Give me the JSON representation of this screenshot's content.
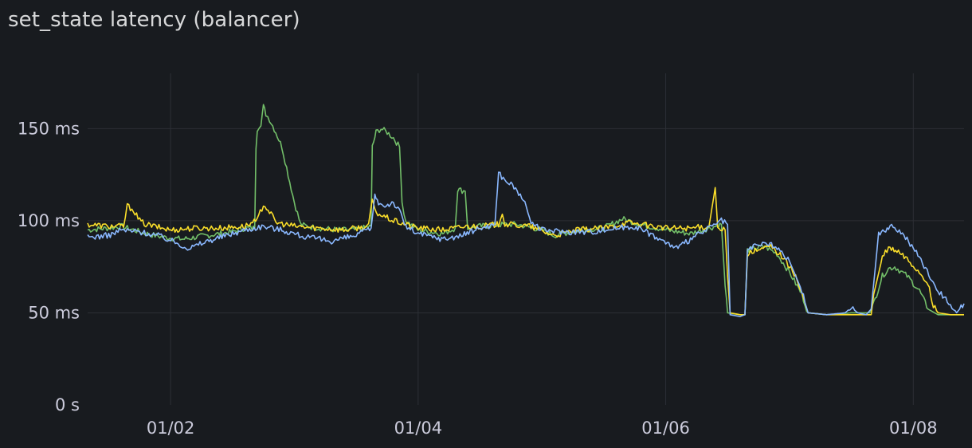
{
  "panel": {
    "title": "set_state latency (balancer)"
  },
  "chart_data": {
    "type": "line",
    "title": "set_state latency (balancer)",
    "xlabel": "",
    "ylabel": "",
    "x_unit": "day",
    "x_range": [
      1.33,
      8.41
    ],
    "x_ticks": [
      {
        "value": 2,
        "label": "01/02"
      },
      {
        "value": 4,
        "label": "01/04"
      },
      {
        "value": 6,
        "label": "01/06"
      },
      {
        "value": 8,
        "label": "01/08"
      }
    ],
    "ylim": [
      0,
      180
    ],
    "y_ticks": [
      {
        "value": 0,
        "label": "0 s"
      },
      {
        "value": 50,
        "label": "50 ms"
      },
      {
        "value": 100,
        "label": "100 ms"
      },
      {
        "value": 150,
        "label": "150 ms"
      }
    ],
    "grid": true,
    "legend": "none",
    "series": [
      {
        "color": "#73bf69",
        "points": [
          [
            1.33,
            95
          ],
          [
            1.5,
            96
          ],
          [
            1.6,
            97
          ],
          [
            1.7,
            95
          ],
          [
            1.8,
            93
          ],
          [
            1.95,
            91
          ],
          [
            2.1,
            90
          ],
          [
            2.3,
            92
          ],
          [
            2.5,
            94
          ],
          [
            2.6,
            96
          ],
          [
            2.68,
            96
          ],
          [
            2.69,
            140
          ],
          [
            2.7,
            150
          ],
          [
            2.73,
            153
          ],
          [
            2.75,
            162
          ],
          [
            2.77,
            158
          ],
          [
            2.8,
            155
          ],
          [
            2.85,
            148
          ],
          [
            2.9,
            140
          ],
          [
            2.95,
            125
          ],
          [
            3.0,
            110
          ],
          [
            3.05,
            98
          ],
          [
            3.1,
            97
          ],
          [
            3.2,
            96
          ],
          [
            3.35,
            95
          ],
          [
            3.5,
            95
          ],
          [
            3.62,
            97
          ],
          [
            3.63,
            140
          ],
          [
            3.66,
            148
          ],
          [
            3.7,
            150
          ],
          [
            3.75,
            148
          ],
          [
            3.8,
            145
          ],
          [
            3.85,
            140
          ],
          [
            3.87,
            110
          ],
          [
            3.9,
            100
          ],
          [
            4.0,
            95
          ],
          [
            4.2,
            93
          ],
          [
            4.3,
            96
          ],
          [
            4.32,
            117
          ],
          [
            4.38,
            116
          ],
          [
            4.4,
            96
          ],
          [
            4.5,
            97
          ],
          [
            4.7,
            98
          ],
          [
            4.8,
            98
          ],
          [
            5.0,
            95
          ],
          [
            5.1,
            92
          ],
          [
            5.3,
            95
          ],
          [
            5.5,
            96
          ],
          [
            5.65,
            101
          ],
          [
            5.8,
            98
          ],
          [
            6.0,
            95
          ],
          [
            6.2,
            93
          ],
          [
            6.35,
            96
          ],
          [
            6.45,
            98
          ],
          [
            6.48,
            65
          ],
          [
            6.5,
            50
          ],
          [
            6.6,
            49
          ],
          [
            6.64,
            49
          ],
          [
            6.66,
            84
          ],
          [
            6.72,
            85
          ],
          [
            6.8,
            86
          ],
          [
            6.9,
            82
          ],
          [
            7.0,
            72
          ],
          [
            7.1,
            60
          ],
          [
            7.15,
            50
          ],
          [
            7.3,
            49
          ],
          [
            7.5,
            50
          ],
          [
            7.65,
            50
          ],
          [
            7.68,
            55
          ],
          [
            7.75,
            70
          ],
          [
            7.8,
            74
          ],
          [
            7.85,
            75
          ],
          [
            7.95,
            70
          ],
          [
            8.05,
            62
          ],
          [
            8.12,
            52
          ],
          [
            8.2,
            49
          ],
          [
            8.3,
            49
          ],
          [
            8.41,
            49
          ]
        ]
      },
      {
        "color": "#fade2a",
        "points": [
          [
            1.33,
            98
          ],
          [
            1.5,
            97
          ],
          [
            1.62,
            97
          ],
          [
            1.65,
            108
          ],
          [
            1.7,
            106
          ],
          [
            1.75,
            100
          ],
          [
            1.8,
            98
          ],
          [
            2.0,
            95
          ],
          [
            2.2,
            96
          ],
          [
            2.4,
            96
          ],
          [
            2.6,
            97
          ],
          [
            2.7,
            100
          ],
          [
            2.75,
            109
          ],
          [
            2.8,
            105
          ],
          [
            2.85,
            99
          ],
          [
            3.0,
            97
          ],
          [
            3.2,
            96
          ],
          [
            3.4,
            95
          ],
          [
            3.6,
            97
          ],
          [
            3.63,
            112
          ],
          [
            3.65,
            105
          ],
          [
            3.7,
            103
          ],
          [
            3.8,
            100
          ],
          [
            3.9,
            98
          ],
          [
            4.0,
            96
          ],
          [
            4.2,
            95
          ],
          [
            4.4,
            97
          ],
          [
            4.5,
            97
          ],
          [
            4.65,
            98
          ],
          [
            4.68,
            105
          ],
          [
            4.7,
            98
          ],
          [
            4.9,
            97
          ],
          [
            5.1,
            92
          ],
          [
            5.3,
            95
          ],
          [
            5.5,
            96
          ],
          [
            5.7,
            99
          ],
          [
            5.9,
            97
          ],
          [
            6.0,
            96
          ],
          [
            6.2,
            96
          ],
          [
            6.35,
            97
          ],
          [
            6.4,
            118
          ],
          [
            6.42,
            96
          ],
          [
            6.48,
            95
          ],
          [
            6.5,
            70
          ],
          [
            6.52,
            50
          ],
          [
            6.6,
            49
          ],
          [
            6.64,
            49
          ],
          [
            6.66,
            82
          ],
          [
            6.75,
            84
          ],
          [
            6.85,
            86
          ],
          [
            6.95,
            80
          ],
          [
            7.05,
            70
          ],
          [
            7.12,
            56
          ],
          [
            7.15,
            50
          ],
          [
            7.3,
            49
          ],
          [
            7.5,
            49
          ],
          [
            7.66,
            49
          ],
          [
            7.68,
            60
          ],
          [
            7.75,
            80
          ],
          [
            7.8,
            85
          ],
          [
            7.88,
            83
          ],
          [
            7.95,
            79
          ],
          [
            8.05,
            72
          ],
          [
            8.12,
            66
          ],
          [
            8.15,
            55
          ],
          [
            8.2,
            50
          ],
          [
            8.3,
            49
          ],
          [
            8.41,
            49
          ]
        ]
      },
      {
        "color": "#8ab8ff",
        "points": [
          [
            1.33,
            91
          ],
          [
            1.5,
            92
          ],
          [
            1.6,
            95
          ],
          [
            1.75,
            94
          ],
          [
            1.9,
            92
          ],
          [
            2.05,
            88
          ],
          [
            2.15,
            85
          ],
          [
            2.3,
            89
          ],
          [
            2.45,
            92
          ],
          [
            2.6,
            95
          ],
          [
            2.75,
            97
          ],
          [
            2.9,
            95
          ],
          [
            3.1,
            91
          ],
          [
            3.3,
            89
          ],
          [
            3.5,
            92
          ],
          [
            3.62,
            96
          ],
          [
            3.65,
            113
          ],
          [
            3.68,
            110
          ],
          [
            3.72,
            108
          ],
          [
            3.8,
            110
          ],
          [
            3.85,
            105
          ],
          [
            3.9,
            97
          ],
          [
            4.0,
            93
          ],
          [
            4.2,
            90
          ],
          [
            4.35,
            92
          ],
          [
            4.5,
            96
          ],
          [
            4.62,
            98
          ],
          [
            4.65,
            126
          ],
          [
            4.7,
            122
          ],
          [
            4.75,
            120
          ],
          [
            4.85,
            112
          ],
          [
            4.9,
            100
          ],
          [
            5.0,
            95
          ],
          [
            5.2,
            94
          ],
          [
            5.4,
            94
          ],
          [
            5.6,
            96
          ],
          [
            5.75,
            97
          ],
          [
            5.9,
            92
          ],
          [
            6.0,
            88
          ],
          [
            6.1,
            85
          ],
          [
            6.2,
            90
          ],
          [
            6.35,
            96
          ],
          [
            6.45,
            100
          ],
          [
            6.5,
            98
          ],
          [
            6.52,
            49
          ],
          [
            6.6,
            48
          ],
          [
            6.64,
            49
          ],
          [
            6.66,
            84
          ],
          [
            6.72,
            86
          ],
          [
            6.82,
            88
          ],
          [
            6.9,
            85
          ],
          [
            7.0,
            78
          ],
          [
            7.1,
            62
          ],
          [
            7.15,
            50
          ],
          [
            7.3,
            49
          ],
          [
            7.45,
            50
          ],
          [
            7.5,
            53
          ],
          [
            7.55,
            50
          ],
          [
            7.62,
            49
          ],
          [
            7.66,
            52
          ],
          [
            7.72,
            93
          ],
          [
            7.8,
            96
          ],
          [
            7.85,
            97
          ],
          [
            7.95,
            90
          ],
          [
            8.05,
            80
          ],
          [
            8.15,
            68
          ],
          [
            8.2,
            62
          ],
          [
            8.3,
            55
          ],
          [
            8.35,
            50
          ],
          [
            8.41,
            55
          ]
        ]
      }
    ]
  }
}
